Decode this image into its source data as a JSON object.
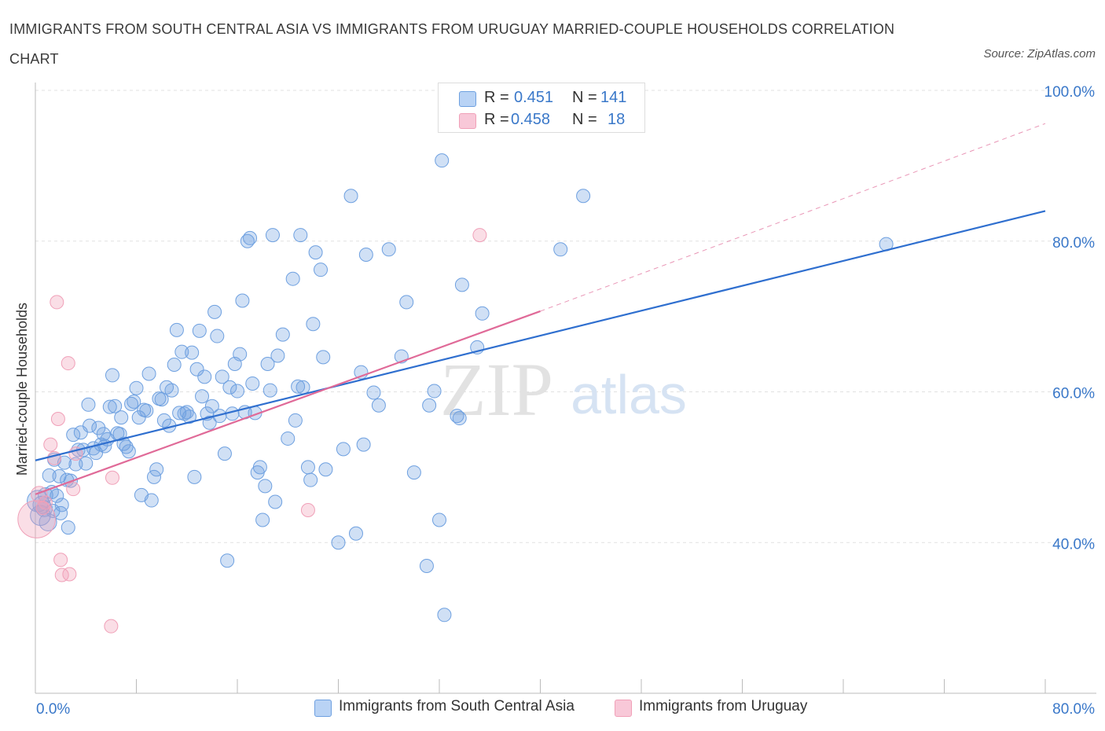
{
  "title": "IMMIGRANTS FROM SOUTH CENTRAL ASIA VS IMMIGRANTS FROM URUGUAY MARRIED-COUPLE HOUSEHOLDS CORRELATION CHART",
  "source": "Source: ZipAtlas.com",
  "watermark": {
    "zip": "ZIP",
    "atlas": "atlas"
  },
  "legend": {
    "r_label": "R =",
    "n_label": "N =",
    "series": [
      {
        "r": "0.451",
        "n": "141"
      },
      {
        "r": "0.458",
        "n": "18"
      }
    ]
  },
  "chart_data": {
    "type": "scatter",
    "title": "IMMIGRANTS FROM SOUTH CENTRAL ASIA VS IMMIGRANTS FROM URUGUAY MARRIED-COUPLE HOUSEHOLDS CORRELATION CHART",
    "xlabel": "",
    "ylabel": "Married-couple Households",
    "xlim": [
      0,
      80
    ],
    "ylim": [
      20,
      100
    ],
    "x_tick_labels": [
      {
        "value": 0,
        "label": "0.0%"
      },
      {
        "value": 80,
        "label": "80.0%"
      }
    ],
    "y_tick_labels": [
      {
        "value": 100,
        "label": "100.0%"
      },
      {
        "value": 80,
        "label": "80.0%"
      },
      {
        "value": 60,
        "label": "60.0%"
      },
      {
        "value": 40,
        "label": "40.0%"
      }
    ],
    "grid": true,
    "legend_position": "top-center",
    "series": [
      {
        "name": "Immigrants from South Central Asia",
        "color": "#6ea0e0",
        "line_color": "#2f6fcf",
        "trend": {
          "x": [
            0,
            80
          ],
          "y": [
            50.9,
            84.0
          ]
        },
        "points": [
          [
            0.2,
            45.5,
            1.6
          ],
          [
            0.4,
            43.6,
            1.5
          ],
          [
            0.5,
            45.0,
            1.3
          ],
          [
            0.7,
            44.5,
            1.2
          ],
          [
            0.8,
            46.3,
            1.1
          ],
          [
            1.0,
            42.7,
            1.3
          ],
          [
            1.1,
            48.9,
            1.0
          ],
          [
            1.3,
            46.7,
            1.0
          ],
          [
            1.4,
            44.2,
            1.0
          ],
          [
            1.5,
            51.0,
            1.0
          ],
          [
            1.7,
            46.2,
            1.0
          ],
          [
            1.9,
            48.8,
            1.0
          ],
          [
            2.0,
            43.9,
            1.0
          ],
          [
            2.1,
            45.0,
            1.0
          ],
          [
            2.3,
            50.6,
            1.0
          ],
          [
            2.5,
            48.3,
            1.0
          ],
          [
            2.6,
            42.0,
            1.0
          ],
          [
            2.8,
            48.2,
            1.0
          ],
          [
            3.0,
            54.3,
            1.0
          ],
          [
            3.2,
            50.4,
            1.0
          ],
          [
            3.4,
            52.3,
            1.0
          ],
          [
            3.6,
            54.6,
            1.0
          ],
          [
            3.8,
            52.3,
            1.0
          ],
          [
            4.0,
            50.5,
            1.0
          ],
          [
            4.2,
            58.3,
            1.0
          ],
          [
            4.3,
            55.5,
            1.0
          ],
          [
            4.6,
            52.5,
            1.0
          ],
          [
            4.8,
            51.9,
            1.0
          ],
          [
            5.0,
            55.2,
            1.0
          ],
          [
            5.2,
            53.0,
            1.0
          ],
          [
            5.4,
            54.4,
            1.0
          ],
          [
            5.5,
            52.8,
            1.0
          ],
          [
            5.7,
            53.7,
            1.0
          ],
          [
            5.9,
            58.0,
            1.0
          ],
          [
            6.1,
            62.2,
            1.0
          ],
          [
            6.3,
            58.1,
            1.0
          ],
          [
            6.5,
            54.5,
            1.0
          ],
          [
            6.7,
            54.4,
            1.0
          ],
          [
            6.8,
            56.6,
            1.0
          ],
          [
            7.0,
            53.1,
            1.0
          ],
          [
            7.2,
            52.7,
            1.0
          ],
          [
            7.4,
            52.1,
            1.0
          ],
          [
            7.6,
            58.4,
            1.0
          ],
          [
            7.8,
            58.7,
            1.0
          ],
          [
            8.0,
            60.5,
            1.0
          ],
          [
            8.2,
            56.6,
            1.0
          ],
          [
            8.4,
            46.3,
            1.0
          ],
          [
            8.6,
            57.6,
            1.0
          ],
          [
            8.8,
            57.5,
            1.0
          ],
          [
            9.0,
            62.4,
            1.0
          ],
          [
            9.2,
            45.6,
            1.0
          ],
          [
            9.4,
            48.7,
            1.0
          ],
          [
            9.6,
            49.7,
            1.0
          ],
          [
            9.8,
            59.1,
            1.0
          ],
          [
            10.0,
            59.0,
            1.0
          ],
          [
            10.2,
            56.2,
            1.0
          ],
          [
            10.4,
            60.6,
            1.0
          ],
          [
            10.6,
            55.5,
            1.0
          ],
          [
            10.8,
            60.2,
            1.0
          ],
          [
            11.0,
            63.6,
            1.0
          ],
          [
            11.2,
            68.2,
            1.0
          ],
          [
            11.4,
            57.2,
            1.0
          ],
          [
            11.6,
            65.3,
            1.0
          ],
          [
            11.8,
            57.1,
            1.0
          ],
          [
            12.0,
            57.3,
            1.0
          ],
          [
            12.2,
            56.7,
            1.0
          ],
          [
            12.4,
            65.2,
            1.0
          ],
          [
            12.6,
            48.7,
            1.0
          ],
          [
            12.8,
            63.0,
            1.0
          ],
          [
            13.0,
            68.1,
            1.0
          ],
          [
            13.2,
            59.4,
            1.0
          ],
          [
            13.4,
            62.0,
            1.0
          ],
          [
            13.6,
            57.1,
            1.0
          ],
          [
            13.8,
            55.9,
            1.0
          ],
          [
            14.0,
            58.1,
            1.0
          ],
          [
            14.2,
            70.6,
            1.0
          ],
          [
            14.4,
            67.4,
            1.0
          ],
          [
            14.6,
            56.8,
            1.0
          ],
          [
            14.8,
            62.0,
            1.0
          ],
          [
            15.0,
            51.8,
            1.0
          ],
          [
            15.2,
            37.6,
            1.0
          ],
          [
            15.4,
            60.6,
            1.0
          ],
          [
            15.6,
            57.1,
            1.0
          ],
          [
            15.8,
            63.7,
            1.0
          ],
          [
            16.0,
            60.1,
            1.0
          ],
          [
            16.2,
            65.0,
            1.0
          ],
          [
            16.4,
            72.1,
            1.0
          ],
          [
            16.6,
            57.3,
            1.0
          ],
          [
            16.8,
            80.0,
            1.0
          ],
          [
            17.0,
            80.4,
            1.0
          ],
          [
            17.2,
            61.1,
            1.0
          ],
          [
            17.4,
            57.2,
            1.0
          ],
          [
            17.6,
            49.3,
            1.0
          ],
          [
            17.8,
            50.0,
            1.0
          ],
          [
            18.0,
            43.0,
            1.0
          ],
          [
            18.2,
            47.5,
            1.0
          ],
          [
            18.4,
            63.7,
            1.0
          ],
          [
            18.6,
            60.2,
            1.0
          ],
          [
            18.8,
            80.8,
            1.0
          ],
          [
            19.0,
            45.4,
            1.0
          ],
          [
            19.2,
            64.8,
            1.0
          ],
          [
            19.6,
            67.6,
            1.0
          ],
          [
            20.0,
            53.8,
            1.0
          ],
          [
            20.4,
            75.0,
            1.0
          ],
          [
            20.6,
            56.2,
            1.0
          ],
          [
            20.8,
            60.7,
            1.0
          ],
          [
            21.0,
            80.8,
            1.0
          ],
          [
            21.2,
            60.6,
            1.0
          ],
          [
            21.6,
            50.0,
            1.0
          ],
          [
            21.8,
            48.3,
            1.0
          ],
          [
            22.0,
            69.0,
            1.0
          ],
          [
            22.2,
            78.5,
            1.0
          ],
          [
            22.6,
            76.2,
            1.0
          ],
          [
            22.8,
            64.6,
            1.0
          ],
          [
            23.0,
            49.7,
            1.0
          ],
          [
            24.0,
            40.0,
            1.0
          ],
          [
            24.4,
            52.4,
            1.0
          ],
          [
            25.0,
            86.0,
            1.0
          ],
          [
            25.4,
            41.2,
            1.0
          ],
          [
            25.8,
            62.6,
            1.0
          ],
          [
            26.0,
            53.0,
            1.0
          ],
          [
            26.2,
            78.2,
            1.0
          ],
          [
            26.8,
            59.9,
            1.0
          ],
          [
            27.2,
            58.2,
            1.0
          ],
          [
            28.0,
            78.9,
            1.0
          ],
          [
            29.0,
            64.7,
            1.0
          ],
          [
            29.4,
            71.9,
            1.0
          ],
          [
            30.0,
            49.3,
            1.0
          ],
          [
            31.0,
            36.9,
            1.0
          ],
          [
            31.2,
            58.2,
            1.0
          ],
          [
            31.6,
            60.1,
            1.0
          ],
          [
            32.0,
            43.0,
            1.0
          ],
          [
            32.2,
            90.7,
            1.0
          ],
          [
            32.4,
            30.4,
            1.0
          ],
          [
            33.4,
            56.8,
            1.0
          ],
          [
            33.6,
            56.5,
            1.0
          ],
          [
            33.8,
            74.2,
            1.0
          ],
          [
            35.0,
            65.9,
            1.0
          ],
          [
            35.4,
            70.4,
            1.0
          ],
          [
            41.6,
            78.9,
            1.0
          ],
          [
            43.4,
            86.0,
            1.0
          ],
          [
            67.4,
            79.6,
            1.0
          ]
        ]
      },
      {
        "name": "Immigrants from Uruguay",
        "color": "#f0a0b8",
        "line_color": "#e06a98",
        "trend": {
          "x": [
            0,
            40
          ],
          "y": [
            46.4,
            70.7
          ]
        },
        "trend_extension": {
          "x": [
            40,
            80
          ],
          "y": [
            70.7,
            95.6
          ]
        },
        "points": [
          [
            0.1,
            43.1,
            2.8
          ],
          [
            0.3,
            46.4,
            1.2
          ],
          [
            0.6,
            44.6,
            1.0
          ],
          [
            1.2,
            53.0,
            1.0
          ],
          [
            1.5,
            51.2,
            1.0
          ],
          [
            1.7,
            71.9,
            1.0
          ],
          [
            1.8,
            56.4,
            1.0
          ],
          [
            2.0,
            37.7,
            1.0
          ],
          [
            2.1,
            35.7,
            1.0
          ],
          [
            2.6,
            63.8,
            1.0
          ],
          [
            2.7,
            35.8,
            1.0
          ],
          [
            3.0,
            47.1,
            1.0
          ],
          [
            3.2,
            51.8,
            1.0
          ],
          [
            6.0,
            28.9,
            1.0
          ],
          [
            6.1,
            48.6,
            1.0
          ],
          [
            21.6,
            44.3,
            1.0
          ],
          [
            35.2,
            80.8,
            1.0
          ],
          [
            0.8,
            45.3,
            1.0
          ]
        ]
      }
    ]
  }
}
